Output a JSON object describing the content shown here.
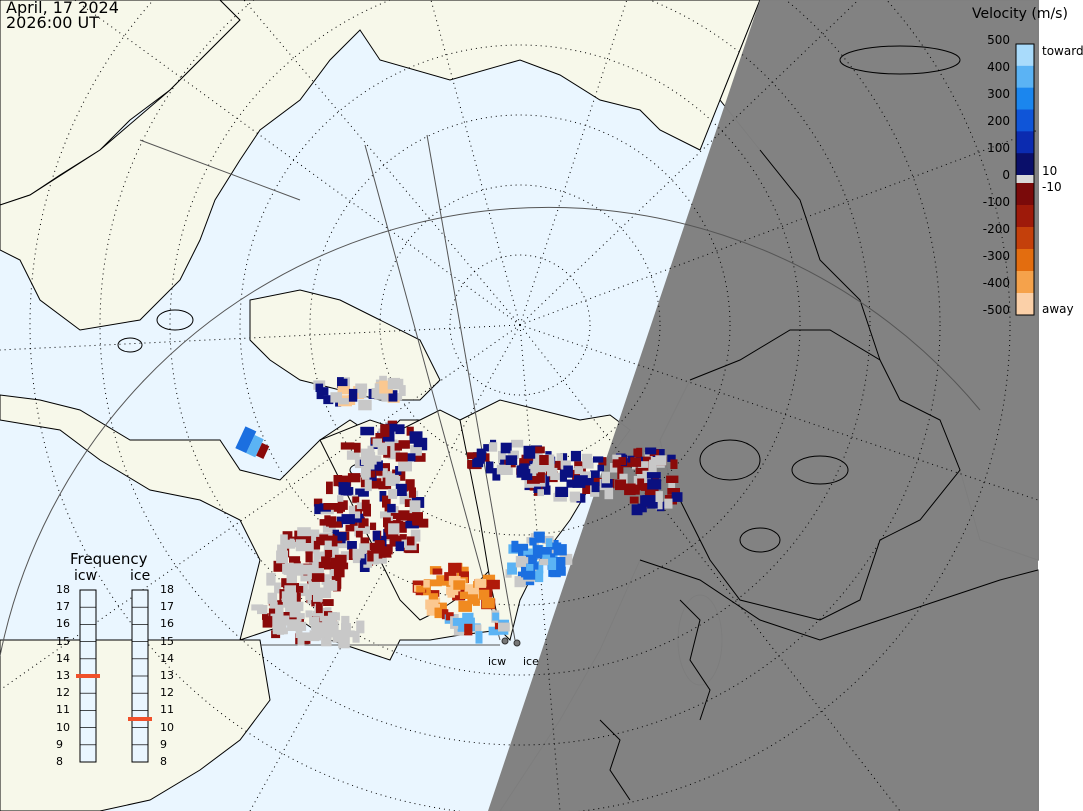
{
  "header": {
    "date": "April, 17 2024",
    "time": "2026:00 UT"
  },
  "velocity_legend": {
    "title": "Velocity (m/s)",
    "ticks": [
      "500",
      "400",
      "300",
      "200",
      "100",
      "0",
      "-100",
      "-200",
      "-300",
      "-400",
      "-500"
    ],
    "inner_ticks": [
      "10",
      "-10"
    ],
    "toward_label": "toward",
    "away_label": "away",
    "colors_toward": [
      "#0a0f6a",
      "#0b2bb0",
      "#0f55d8",
      "#1b86ee",
      "#5bb3f4",
      "#a9dbfb"
    ],
    "colors_away": [
      "#7a0a0a",
      "#9e1a0a",
      "#c4400b",
      "#e36d0f",
      "#f5a24b",
      "#fbd0a8"
    ]
  },
  "frequency_legend": {
    "title": "Frequency",
    "radars": [
      {
        "name": "icw",
        "current_mhz": 13
      },
      {
        "name": "ice",
        "current_mhz": 10.5
      }
    ],
    "ticks": [
      "18",
      "17",
      "16",
      "15",
      "14",
      "13",
      "12",
      "11",
      "10",
      "9",
      "8"
    ]
  },
  "radar_sites": [
    {
      "name": "icw"
    },
    {
      "name": "ice"
    }
  ],
  "colors": {
    "ocean": "#eaf6ff",
    "land": "#f7f8ea",
    "night": "#808080",
    "coast": "#000000",
    "low_velocity": "#c8c8c8",
    "frequency_marker": "#f0502a"
  }
}
